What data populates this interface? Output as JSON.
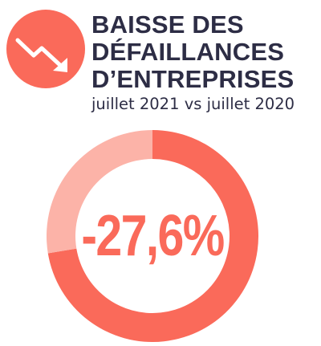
{
  "header": {
    "icon": "trend-down-arrow-icon",
    "title_lines": [
      "BAISSE DES",
      "DÉFAILLANCES",
      "D’ENTREPRISES"
    ],
    "subtitle": "juillet 2021 vs juillet 2020"
  },
  "colors": {
    "accent": "#FA6A5A",
    "accent_light": "#FCB3A8",
    "title": "#2D2D45",
    "white": "#FFFFFF"
  },
  "chart_data": {
    "type": "pie",
    "variant": "donut",
    "display_value": "-27,6%",
    "highlight_percent": 27.6,
    "slices": [
      {
        "value": 72.4,
        "color": "#FA6A5A"
      },
      {
        "value": 27.6,
        "color": "#FCB3A8"
      }
    ]
  }
}
